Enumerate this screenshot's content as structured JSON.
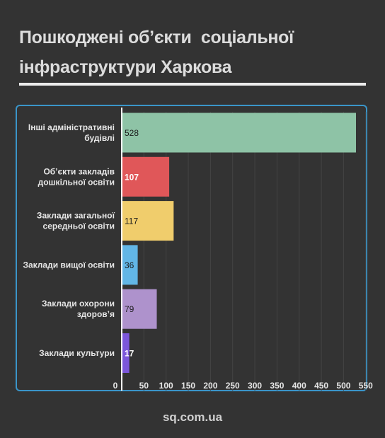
{
  "header": {
    "title_line1": "Пошкоджені об’єкти  соціальної",
    "title_line2": "інфраструктури Харкова"
  },
  "footer": {
    "source": "sq.com.ua"
  },
  "colors": {
    "background": "#333333",
    "frame_border": "#3a95c9",
    "axis_text": "#e6e6e6"
  },
  "chart_data": {
    "type": "bar",
    "orientation": "horizontal",
    "title": "",
    "xlabel": "",
    "ylabel": "",
    "xlim": [
      0,
      550
    ],
    "xticks": [
      0,
      50,
      100,
      150,
      200,
      250,
      300,
      350,
      400,
      450,
      500,
      550
    ],
    "grid": true,
    "legend": "none",
    "categories": [
      [
        "Інші адміністративні",
        "будівлі"
      ],
      [
        "Об’єкти закладів",
        "дошкільної освіти"
      ],
      [
        "Заклади загальної",
        "середньої освіти"
      ],
      [
        "Заклади вищої освіти"
      ],
      [
        "Заклади охорони",
        "здоров’я"
      ],
      [
        "Заклади культури"
      ]
    ],
    "values": [
      528,
      107,
      117,
      36,
      79,
      17
    ],
    "bar_colors": [
      "#8ec3a6",
      "#e05759",
      "#f0cd6c",
      "#62b6e6",
      "#ae92cc",
      "#7b56da"
    ],
    "label_colors": [
      "#1a1a1a",
      "#ffffff",
      "#1a1a1a",
      "#1a1a1a",
      "#1a1a1a",
      "#ffffff"
    ]
  }
}
